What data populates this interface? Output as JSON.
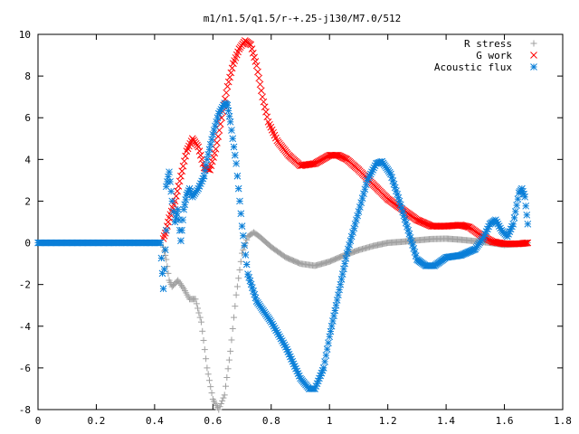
{
  "chart_data": {
    "type": "scatter",
    "title": "m1/n1.5/q1.5/r-+.25-j130/M7.0/512",
    "xlabel": "",
    "ylabel": "",
    "xlim": [
      0,
      1.8
    ],
    "ylim": [
      -8,
      10
    ],
    "x_ticks": [
      "0",
      "0.2",
      "0.4",
      "0.6",
      "0.8",
      "1",
      "1.2",
      "1.4",
      "1.6",
      "1.8"
    ],
    "y_ticks": [
      "10",
      "8",
      "6",
      "4",
      "2",
      "0",
      "-2",
      "-4",
      "-6",
      "-8"
    ],
    "grid": false,
    "legend_position": "top-right",
    "series": [
      {
        "name": "R stress",
        "marker": "plus",
        "color": "#a0a0a0",
        "points": [
          [
            0.43,
            -0.2
          ],
          [
            0.44,
            -0.8
          ],
          [
            0.45,
            -1.8
          ],
          [
            0.46,
            -2.1
          ],
          [
            0.48,
            -1.8
          ],
          [
            0.5,
            -2.2
          ],
          [
            0.52,
            -2.7
          ],
          [
            0.54,
            -2.7
          ],
          [
            0.56,
            -3.8
          ],
          [
            0.58,
            -6.0
          ],
          [
            0.6,
            -7.5
          ],
          [
            0.62,
            -8.0
          ],
          [
            0.64,
            -7.3
          ],
          [
            0.66,
            -5.2
          ],
          [
            0.68,
            -2.5
          ],
          [
            0.7,
            -0.5
          ],
          [
            0.72,
            0.3
          ],
          [
            0.74,
            0.5
          ],
          [
            0.76,
            0.3
          ],
          [
            0.8,
            -0.2
          ],
          [
            0.85,
            -0.7
          ],
          [
            0.9,
            -1.0
          ],
          [
            0.95,
            -1.1
          ],
          [
            1.0,
            -0.9
          ],
          [
            1.05,
            -0.6
          ],
          [
            1.1,
            -0.35
          ],
          [
            1.15,
            -0.15
          ],
          [
            1.2,
            0.0
          ],
          [
            1.25,
            0.05
          ],
          [
            1.3,
            0.12
          ],
          [
            1.35,
            0.18
          ],
          [
            1.4,
            0.2
          ],
          [
            1.45,
            0.15
          ],
          [
            1.5,
            0.08
          ],
          [
            1.55,
            0.0
          ],
          [
            1.6,
            -0.1
          ],
          [
            1.65,
            -0.05
          ],
          [
            1.68,
            0.0
          ]
        ]
      },
      {
        "name": "G work",
        "marker": "cross",
        "color": "#ff0000",
        "points": [
          [
            0.43,
            0.2
          ],
          [
            0.44,
            0.6
          ],
          [
            0.45,
            1.2
          ],
          [
            0.47,
            2.0
          ],
          [
            0.49,
            3.2
          ],
          [
            0.51,
            4.4
          ],
          [
            0.53,
            5.0
          ],
          [
            0.55,
            4.6
          ],
          [
            0.57,
            3.6
          ],
          [
            0.59,
            3.5
          ],
          [
            0.61,
            4.5
          ],
          [
            0.63,
            6.0
          ],
          [
            0.65,
            7.5
          ],
          [
            0.67,
            8.6
          ],
          [
            0.69,
            9.3
          ],
          [
            0.71,
            9.7
          ],
          [
            0.73,
            9.5
          ],
          [
            0.75,
            8.5
          ],
          [
            0.77,
            7.0
          ],
          [
            0.79,
            5.8
          ],
          [
            0.82,
            4.9
          ],
          [
            0.86,
            4.2
          ],
          [
            0.9,
            3.7
          ],
          [
            0.95,
            3.8
          ],
          [
            1.0,
            4.2
          ],
          [
            1.03,
            4.2
          ],
          [
            1.06,
            4.0
          ],
          [
            1.1,
            3.5
          ],
          [
            1.15,
            2.8
          ],
          [
            1.2,
            2.1
          ],
          [
            1.25,
            1.6
          ],
          [
            1.3,
            1.1
          ],
          [
            1.35,
            0.8
          ],
          [
            1.4,
            0.8
          ],
          [
            1.45,
            0.85
          ],
          [
            1.48,
            0.75
          ],
          [
            1.52,
            0.35
          ],
          [
            1.56,
            0.05
          ],
          [
            1.6,
            -0.05
          ],
          [
            1.65,
            -0.05
          ],
          [
            1.68,
            0.0
          ]
        ]
      },
      {
        "name": "Acoustic flux",
        "marker": "star",
        "color": "#0a7fd8",
        "points": [
          [
            0.0,
            0.0
          ],
          [
            0.03,
            0.0
          ],
          [
            0.06,
            0.0
          ],
          [
            0.09,
            0.0
          ],
          [
            0.12,
            0.0
          ],
          [
            0.15,
            0.0
          ],
          [
            0.18,
            0.0
          ],
          [
            0.21,
            0.0
          ],
          [
            0.24,
            0.0
          ],
          [
            0.27,
            0.0
          ],
          [
            0.3,
            0.0
          ],
          [
            0.33,
            0.0
          ],
          [
            0.36,
            0.0
          ],
          [
            0.39,
            0.0
          ],
          [
            0.42,
            0.0
          ],
          [
            0.43,
            -2.2
          ],
          [
            0.44,
            0.6
          ],
          [
            0.44,
            2.7
          ],
          [
            0.45,
            3.4
          ],
          [
            0.46,
            2.0
          ],
          [
            0.47,
            1.0
          ],
          [
            0.48,
            1.6
          ],
          [
            0.49,
            0.1
          ],
          [
            0.5,
            1.6
          ],
          [
            0.51,
            2.3
          ],
          [
            0.52,
            2.6
          ],
          [
            0.53,
            2.2
          ],
          [
            0.55,
            2.6
          ],
          [
            0.57,
            3.2
          ],
          [
            0.58,
            4.0
          ],
          [
            0.6,
            5.2
          ],
          [
            0.62,
            6.2
          ],
          [
            0.64,
            6.7
          ],
          [
            0.65,
            6.6
          ],
          [
            0.66,
            5.8
          ],
          [
            0.68,
            3.8
          ],
          [
            0.7,
            0.8
          ],
          [
            0.72,
            -1.5
          ],
          [
            0.75,
            -2.8
          ],
          [
            0.8,
            -3.8
          ],
          [
            0.85,
            -5.0
          ],
          [
            0.9,
            -6.5
          ],
          [
            0.93,
            -7.0
          ],
          [
            0.95,
            -7.0
          ],
          [
            0.98,
            -6.0
          ],
          [
            1.0,
            -4.5
          ],
          [
            1.03,
            -2.5
          ],
          [
            1.06,
            -0.5
          ],
          [
            1.1,
            1.5
          ],
          [
            1.13,
            3.0
          ],
          [
            1.16,
            3.8
          ],
          [
            1.18,
            3.9
          ],
          [
            1.21,
            3.3
          ],
          [
            1.24,
            2.0
          ],
          [
            1.27,
            0.6
          ],
          [
            1.3,
            -0.8
          ],
          [
            1.33,
            -1.1
          ],
          [
            1.36,
            -1.1
          ],
          [
            1.4,
            -0.7
          ],
          [
            1.45,
            -0.6
          ],
          [
            1.5,
            -0.3
          ],
          [
            1.53,
            0.3
          ],
          [
            1.55,
            0.9
          ],
          [
            1.57,
            1.1
          ],
          [
            1.59,
            0.6
          ],
          [
            1.61,
            0.3
          ],
          [
            1.63,
            0.9
          ],
          [
            1.65,
            2.4
          ],
          [
            1.66,
            2.6
          ],
          [
            1.67,
            2.2
          ],
          [
            1.68,
            0.9
          ]
        ]
      }
    ]
  }
}
